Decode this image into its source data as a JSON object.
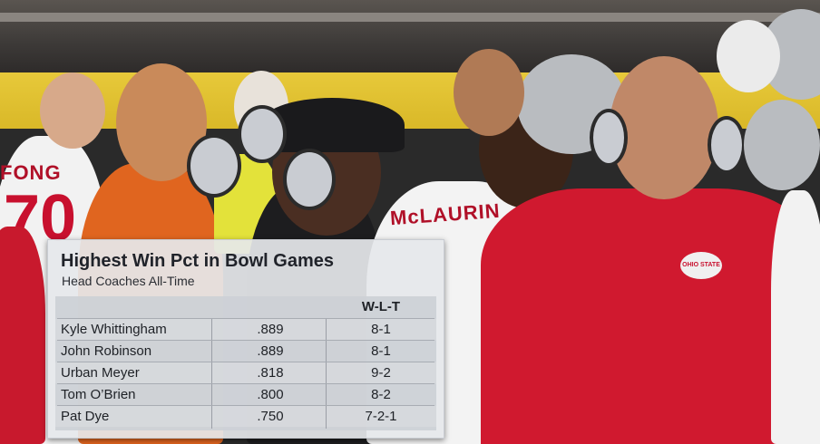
{
  "graphic": {
    "title": "Highest Win Pct in Bowl Games",
    "subtitle": "Head Coaches All-Time",
    "columns": [
      "",
      "",
      "W-L-T"
    ],
    "rows": [
      {
        "name": "Kyle Whittingham",
        "pct": ".889",
        "wlt": "8-1"
      },
      {
        "name": "John Robinson",
        "pct": ".889",
        "wlt": "8-1"
      },
      {
        "name": "Urban Meyer",
        "pct": ".818",
        "wlt": "9-2"
      },
      {
        "name": "Tom O’Brien",
        "pct": ".800",
        "wlt": "8-2"
      },
      {
        "name": "Pat Dye",
        "pct": ".750",
        "wlt": "7-2-1"
      }
    ]
  },
  "scene": {
    "jersey_left_name": "FONG",
    "jersey_left_number": "70",
    "jersey_center_name": "McLAURIN",
    "jacket_logo": "OHIO STATE",
    "colors": {
      "scarlet": "#d0192f",
      "gray": "#b9bcc0",
      "orange": "#e0651f",
      "yellow": "#e4c535"
    }
  }
}
